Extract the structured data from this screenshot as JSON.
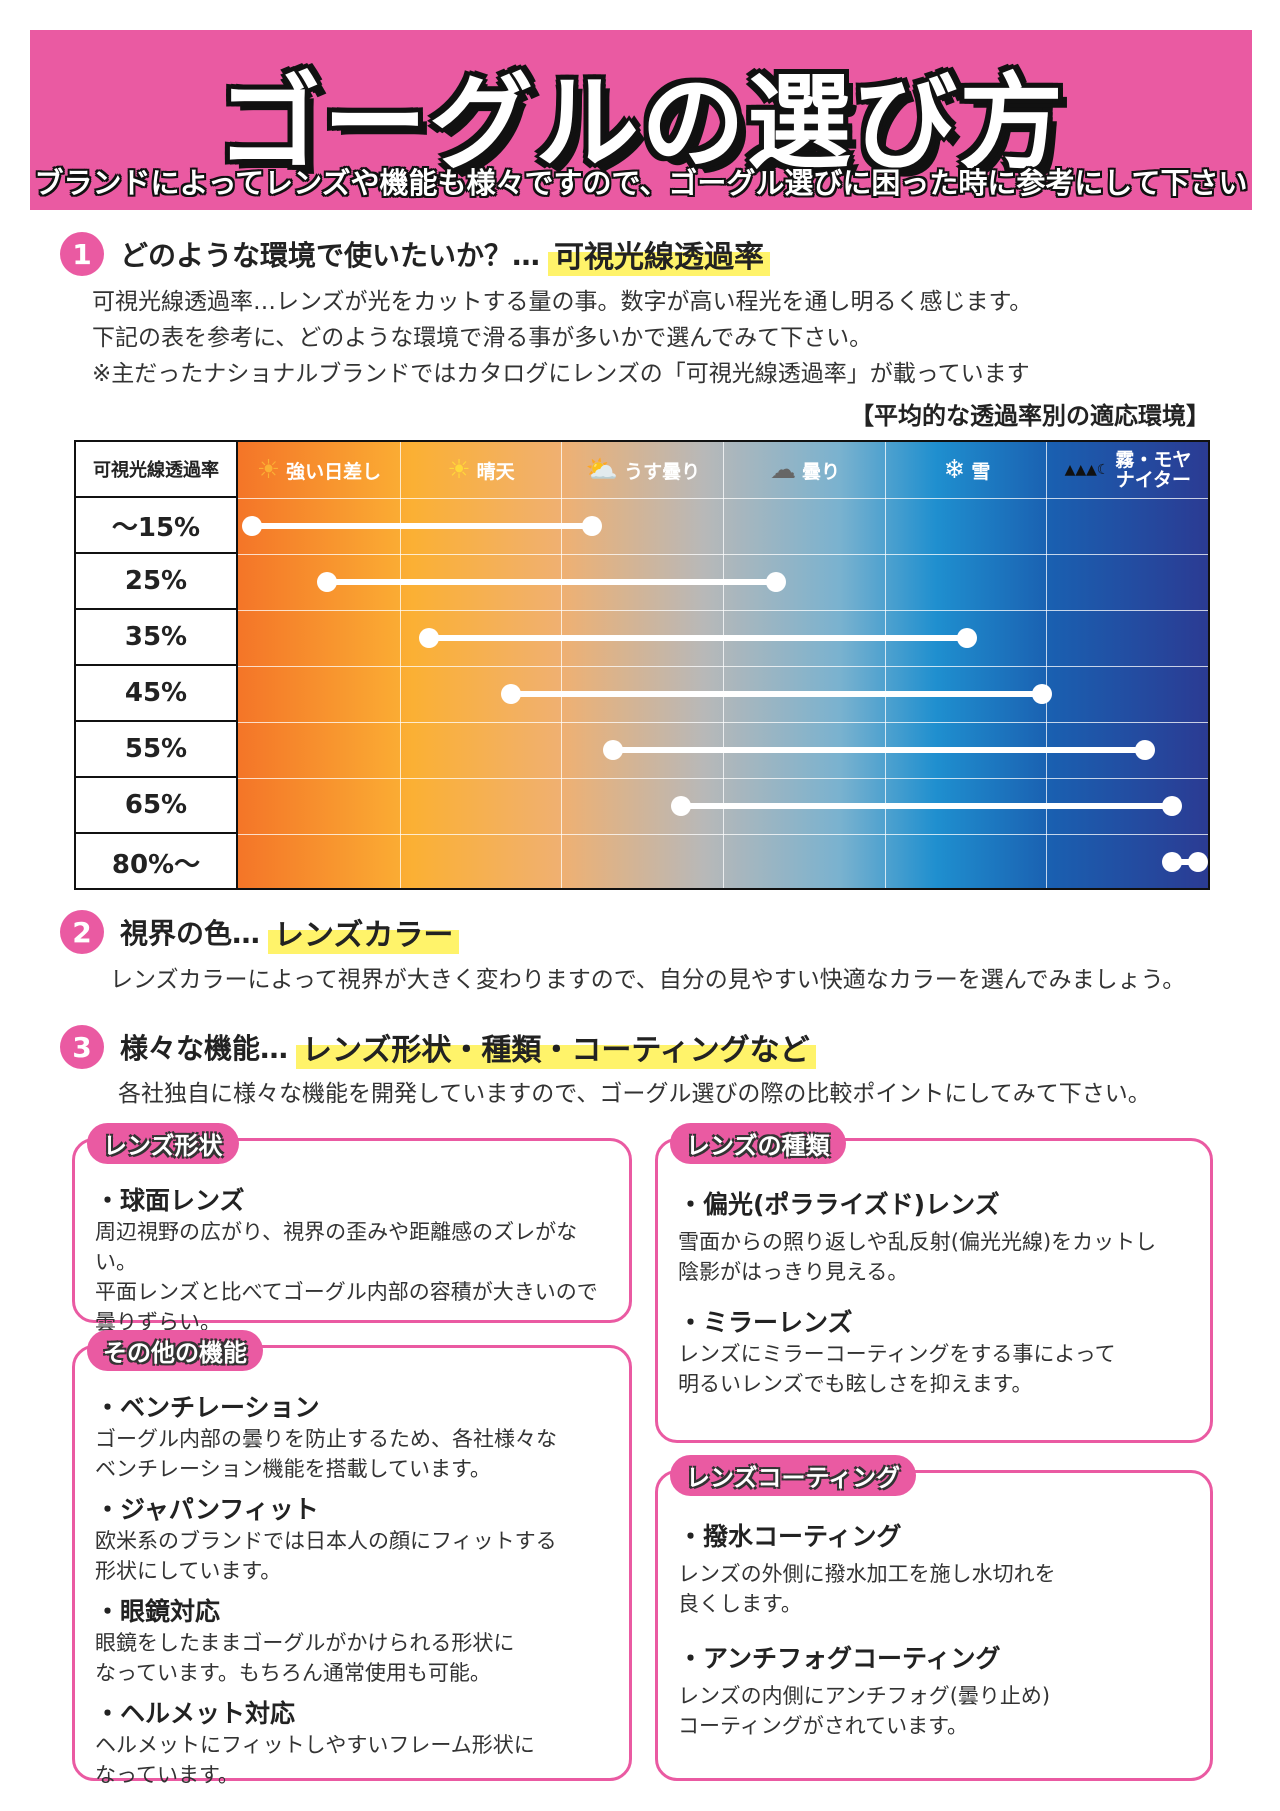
{
  "header": {
    "title": "ゴーグルの選び方",
    "subtitle": "ブランドによってレンズや機能も様々ですので、ゴーグル選びに困った時に参考にして下さい"
  },
  "section1": {
    "number": "1",
    "title": "どのような環境で使いたいか？…",
    "keyword": "可視光線透過率",
    "lines": [
      "可視光線透過率…レンズが光をカットする量の事。数字が高い程光を通し明るく感じます。",
      "下記の表を参考に、どのような環境で滑る事が多いかで選んでみて下さい。",
      "※主だったナショナルブランドではカタログにレンズの「可視光線透過率」が載っています"
    ]
  },
  "table": {
    "caption": "【平均的な透過率別の適応環境】",
    "row_header": "可視光線透過率",
    "environments": [
      {
        "label": "強い日差し",
        "icon": "sun-icon",
        "glyph": "☀"
      },
      {
        "label": "晴天",
        "icon": "sun-small-icon",
        "glyph": "☀"
      },
      {
        "label": "うす曇り",
        "icon": "partly-cloudy-icon",
        "glyph": "⛅"
      },
      {
        "label": "曇り",
        "icon": "cloud-icon",
        "glyph": "☁"
      },
      {
        "label": "雪",
        "icon": "snowflake-icon",
        "glyph": "❄"
      },
      {
        "label": "霧・モヤ",
        "label2": "ナイター",
        "icon": "night-trees-icon",
        "glyph": "▲▲▲☾"
      }
    ],
    "rows": [
      {
        "label": "〜15%",
        "start": 0.01,
        "end": 0.26
      },
      {
        "label": "25%",
        "start": 0.065,
        "end": 0.395
      },
      {
        "label": "35%",
        "start": 0.14,
        "end": 0.535
      },
      {
        "label": "45%",
        "start": 0.2,
        "end": 0.59
      },
      {
        "label": "55%",
        "start": 0.275,
        "end": 0.665
      },
      {
        "label": "65%",
        "start": 0.325,
        "end": 0.685
      },
      {
        "label": "80%〜",
        "start": 0.685,
        "end": 0.8
      }
    ]
  },
  "section2": {
    "number": "2",
    "title": "視界の色…",
    "keyword": "レンズカラー",
    "text": "レンズカラーによって視界が大きく変わりますので、自分の見やすい快適なカラーを選んでみましょう。"
  },
  "section3": {
    "number": "3",
    "title": "様々な機能…",
    "keyword": "レンズ形状・種類・コーティングなど",
    "text": "各社独自に様々な機能を開発していますので、ゴーグル選びの際の比較ポイントにしてみて下さい。"
  },
  "boxes": {
    "shape": {
      "tag": "レンズ形状",
      "items": [
        {
          "title": "・球面レンズ",
          "lines": [
            "周辺視野の広がり、視界の歪みや距離感のズレがない。",
            "平面レンズと比べてゴーグル内部の容積が大きいので",
            "曇りずらい。"
          ]
        }
      ]
    },
    "other": {
      "tag": "その他の機能",
      "items": [
        {
          "title": "・ベンチレーション",
          "lines": [
            "ゴーグル内部の曇りを防止するため、各社様々な",
            "ベンチレーション機能を搭載しています。"
          ]
        },
        {
          "title": "・ジャパンフィット",
          "lines": [
            "欧米系のブランドでは日本人の顔にフィットする",
            "形状にしています。"
          ]
        },
        {
          "title": "・眼鏡対応",
          "lines": [
            "眼鏡をしたままゴーグルがかけられる形状に",
            "なっています。もちろん通常使用も可能。"
          ]
        },
        {
          "title": "・ヘルメット対応",
          "lines": [
            "ヘルメットにフィットしやすいフレーム形状に",
            "なっています。"
          ]
        }
      ]
    },
    "type": {
      "tag": "レンズの種類",
      "items": [
        {
          "title": "・偏光(ポラライズド)レンズ",
          "lines": [
            "雪面からの照り返しや乱反射(偏光光線)をカットし",
            "陰影がはっきり見える。"
          ]
        },
        {
          "title": "・ミラーレンズ",
          "lines": [
            "レンズにミラーコーティングをする事によって",
            "明るいレンズでも眩しさを抑えます。"
          ]
        }
      ]
    },
    "coating": {
      "tag": "レンズコーティング",
      "items": [
        {
          "title": "・撥水コーティング",
          "lines": [
            "レンズの外側に撥水加工を施し水切れを",
            "良くします。"
          ]
        },
        {
          "title": "・アンチフォグコーティング",
          "lines": [
            "レンズの内側にアンチフォグ(曇り止め)",
            "コーティングがされています。"
          ]
        }
      ]
    }
  },
  "colors": {
    "accent": "#ea5aa2",
    "highlight": "#fff36a"
  }
}
